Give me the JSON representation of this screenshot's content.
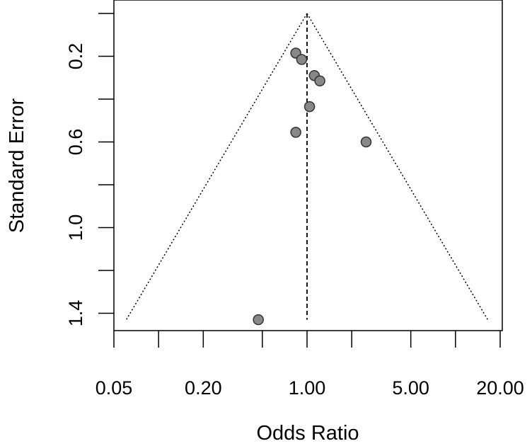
{
  "chart_data": {
    "type": "scatter",
    "title": "",
    "xlabel": "Odds Ratio",
    "ylabel": "Standard Error",
    "x_scale": "log",
    "x_ticks": [
      0.05,
      0.1,
      0.2,
      0.5,
      1.0,
      2.0,
      5.0,
      10.0,
      20.0
    ],
    "x_tick_labels": [
      "0.05",
      "0.20",
      "1.00",
      "5.00",
      "20.00"
    ],
    "x_tick_labels_at": [
      0.05,
      0.2,
      1.0,
      5.0,
      20.0
    ],
    "y_ticks": [
      0.0,
      0.2,
      0.4,
      0.6,
      0.8,
      1.0,
      1.2,
      1.4
    ],
    "y_tick_labels": [
      "0.2",
      "0.6",
      "1.0",
      "1.4"
    ],
    "y_tick_labels_at": [
      0.2,
      0.6,
      1.0,
      1.4
    ],
    "y_reversed": true,
    "ylim": [
      0.0,
      1.45
    ],
    "pooled_or": 1.0,
    "funnel": {
      "ci_z": 1.96,
      "se_max": 1.43
    },
    "points": [
      {
        "x": 0.84,
        "y": 0.185
      },
      {
        "x": 0.92,
        "y": 0.215
      },
      {
        "x": 1.12,
        "y": 0.29
      },
      {
        "x": 1.22,
        "y": 0.315
      },
      {
        "x": 1.04,
        "y": 0.435
      },
      {
        "x": 0.84,
        "y": 0.555
      },
      {
        "x": 2.5,
        "y": 0.6
      },
      {
        "x": 0.47,
        "y": 1.43
      }
    ],
    "grid": false,
    "legend": "none",
    "colors": {
      "point_fill": "#888888",
      "point_stroke": "#333333",
      "line": "#000000"
    }
  }
}
